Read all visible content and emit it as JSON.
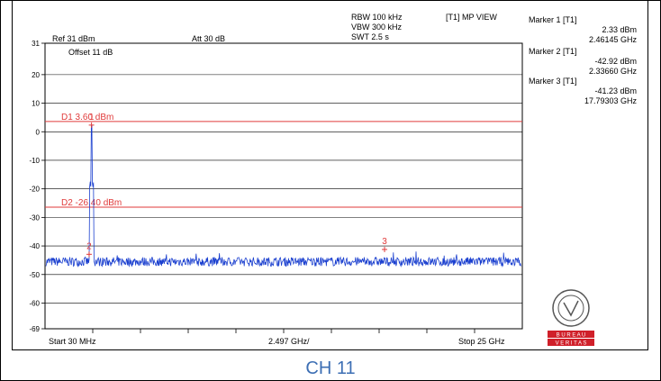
{
  "header": {
    "rbw": "RBW 100 kHz",
    "vbw": "VBW 300 kHz",
    "swt": "SWT 2.5 s",
    "view": "[T1] MP VIEW",
    "ref": "Ref 31 dBm",
    "att": "Att  30 dB",
    "offset": "Offset 11 dB"
  },
  "markers": [
    {
      "title": "Marker 1 [T1]",
      "level": "2.33 dBm",
      "freq": "2.46145 GHz"
    },
    {
      "title": "Marker 2 [T1]",
      "level": "-42.92 dBm",
      "freq": "2.33660 GHz"
    },
    {
      "title": "Marker 3 [T1]",
      "level": "-41.23 dBm",
      "freq": "17.79303 GHz"
    }
  ],
  "footer": {
    "start": "Start 30 MHz",
    "span": "2.497 GHz/",
    "stop": "Stop 25 GHz"
  },
  "caption": "CH 11",
  "logo": {
    "name": "bureau-veritas-logo",
    "text_top": "B U R E A U",
    "text_bottom": "V E R I T A S",
    "color": "#d0202a"
  },
  "chart_data": {
    "type": "line",
    "ylim": [
      -69,
      31
    ],
    "yticks": [
      "31",
      "20",
      "10",
      "0",
      "-10",
      "-20",
      "-30",
      "-40",
      "-50",
      "-60",
      "-69"
    ],
    "ytick_values": [
      31,
      20,
      10,
      0,
      -10,
      -20,
      -30,
      -40,
      -50,
      -60,
      -69
    ],
    "xlim_ghz": [
      0.03,
      25
    ],
    "x_divisions": 10,
    "display_lines": [
      {
        "label": "D1 3.60 dBm",
        "value": 3.6,
        "color": "#e03a3a"
      },
      {
        "label": "D2 -26.40 dBm",
        "value": -26.4,
        "color": "#e03a3a"
      }
    ],
    "marker_points": [
      {
        "label": "1",
        "x_ghz": 2.46145,
        "y": 2.33
      },
      {
        "label": "2",
        "x_ghz": 2.3366,
        "y": -42.92
      },
      {
        "label": "3",
        "x_ghz": 17.79303,
        "y": -41.23
      }
    ],
    "series": [
      {
        "color": "#1a3fcf",
        "noise_floor": -45.5,
        "peak_x_ghz": 2.46145,
        "peak_y": 2.33
      }
    ]
  }
}
